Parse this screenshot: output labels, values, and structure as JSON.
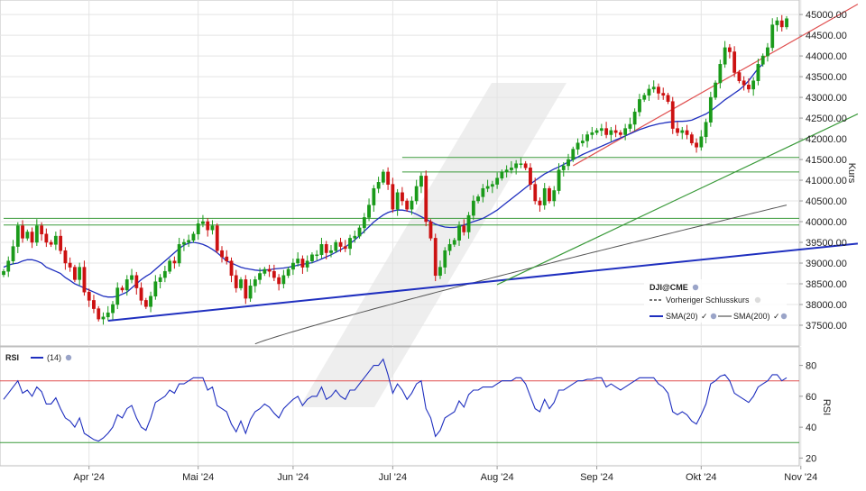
{
  "chart_data": [
    {
      "type": "candlestick",
      "panel": "price",
      "symbol": "DJI@CME",
      "ylabel": "Kurs",
      "ylim": [
        37000,
        45350
      ],
      "yticks": [
        37500,
        38000,
        38500,
        39000,
        39500,
        40000,
        40500,
        41000,
        41500,
        42000,
        42500,
        43000,
        43500,
        44000,
        44500,
        45000
      ],
      "ytick_labels": [
        "37500.00",
        "38000.00",
        "38500.00",
        "39000.00",
        "39500.00",
        "40000.00",
        "40500.00",
        "41000.00",
        "41500.00",
        "42000.00",
        "42500.00",
        "43000.00",
        "43500.00",
        "44000.00",
        "44500.00",
        "45000.00"
      ],
      "x_labels": [
        "Apr '24",
        "Mai '24",
        "Jun '24",
        "Jul '24",
        "Aug '24",
        "Sep '24",
        "Okt '24",
        "Nov '24"
      ],
      "x_label_index": [
        18,
        41,
        61,
        82,
        104,
        125,
        147,
        168
      ],
      "candle_color_up": "#1a9a1a",
      "candle_color_down": "#cc1111",
      "close": [
        38800,
        39050,
        39400,
        39900,
        39600,
        39750,
        39500,
        39900,
        39700,
        39500,
        39450,
        39650,
        39300,
        39000,
        38900,
        38600,
        38900,
        38300,
        38100,
        37900,
        37650,
        37700,
        37800,
        38000,
        38400,
        38350,
        38600,
        38700,
        38400,
        38100,
        37950,
        38200,
        38550,
        38650,
        38800,
        39050,
        39000,
        39450,
        39500,
        39550,
        39700,
        39950,
        40000,
        39800,
        39900,
        39300,
        39150,
        39050,
        38700,
        38400,
        38600,
        38150,
        38450,
        38600,
        38750,
        38850,
        38800,
        38650,
        38500,
        38700,
        38850,
        39000,
        39100,
        38900,
        39050,
        39200,
        39200,
        39450,
        39250,
        39300,
        39500,
        39400,
        39350,
        39600,
        39650,
        39850,
        40100,
        40400,
        40800,
        40950,
        41200,
        40900,
        40300,
        40700,
        40500,
        40300,
        40500,
        40850,
        41100,
        40000,
        39600,
        38700,
        38900,
        39300,
        39450,
        39550,
        39900,
        39750,
        40150,
        40500,
        40600,
        40800,
        40850,
        40900,
        41050,
        41200,
        41250,
        41300,
        41400,
        41400,
        41300,
        40900,
        40500,
        40400,
        40800,
        40500,
        40750,
        41250,
        41350,
        41500,
        41750,
        41900,
        41950,
        42100,
        42150,
        42200,
        42250,
        42100,
        42200,
        42150,
        42100,
        42250,
        42350,
        42650,
        42950,
        43050,
        43200,
        43250,
        43100,
        43050,
        42900,
        42250,
        42150,
        42200,
        42100,
        41900,
        41800,
        42050,
        42400,
        43000,
        43350,
        43800,
        44200,
        44100,
        43600,
        43400,
        43300,
        43200,
        43400,
        43800,
        44000,
        44200,
        44750,
        44850,
        44700,
        44900
      ],
      "sma20_start_index": 0,
      "sma20": [
        38900,
        38950,
        38980,
        39000,
        39050,
        39080,
        39080,
        39050,
        39000,
        38900,
        38850,
        38800,
        38750,
        38650,
        38580,
        38500,
        38450,
        38400,
        38350,
        38300,
        38250,
        38200,
        38180,
        38180,
        38200,
        38250,
        38300,
        38400,
        38500,
        38600,
        38680,
        38750,
        38850,
        38950,
        39050,
        39150,
        39250,
        39350,
        39430,
        39480,
        39500,
        39480,
        39450,
        39400,
        39330,
        39250,
        39150,
        39050,
        39000,
        38950,
        38900,
        38870,
        38850,
        38830,
        38820,
        38830,
        38840,
        38860,
        38870,
        38880,
        38900,
        38920,
        38950,
        38970,
        38990,
        39010,
        39050,
        39100,
        39150,
        39200,
        39260,
        39320,
        39390,
        39470,
        39560,
        39660,
        39770,
        39880,
        39990,
        40080,
        40160,
        40220,
        40260,
        40280,
        40280,
        40260,
        40230,
        40180,
        40120,
        40060,
        40000,
        39940,
        39900,
        39870,
        39860,
        39860,
        39880,
        39920,
        39960,
        40000,
        40040,
        40080,
        40140,
        40210,
        40280,
        40370,
        40460,
        40550,
        40640,
        40730,
        40820,
        40910,
        40990,
        41070,
        41150,
        41210,
        41270,
        41320,
        41380,
        41440,
        41500,
        41560,
        41620,
        41670,
        41720,
        41770,
        41820,
        41870,
        41920,
        41970,
        42020,
        42070,
        42120,
        42170,
        42220,
        42260,
        42300,
        42330,
        42360,
        42380,
        42400,
        42410,
        42420,
        42420,
        42430,
        42450,
        42500,
        42550,
        42600,
        42670,
        42760,
        42850,
        42940,
        43020,
        43100,
        43180,
        43280,
        43400,
        43550,
        43700,
        43800
      ],
      "sma200_start_index": 53,
      "sma200_end_value": 40400,
      "sma200_start_value": 37050,
      "trendlines": [
        {
          "name": "support-blue",
          "color": "#1f2fbf",
          "from": [
            22,
            37610
          ],
          "to": [
            180,
            39470
          ]
        },
        {
          "name": "channel-upper-red",
          "color": "#e05050",
          "from": [
            120,
            41350
          ],
          "to": [
            180,
            45250
          ]
        },
        {
          "name": "channel-lower-green",
          "color": "#3a9a3a",
          "from": [
            104,
            38480
          ],
          "to": [
            180,
            42600
          ]
        }
      ],
      "horizontal_lines": [
        {
          "value": 41550,
          "from_index": 84,
          "color": "#3a9a3a"
        },
        {
          "value": 41200,
          "from_index": 84,
          "color": "#3a9a3a"
        },
        {
          "value": 40080,
          "from_index": 0,
          "color": "#3a9a3a"
        },
        {
          "value": 39920,
          "from_index": 0,
          "color": "#3a9a3a"
        }
      ],
      "legend": {
        "title": "DJI@CME",
        "items": [
          {
            "label": "Vorheriger Schlusskurs",
            "style": "dashed",
            "color": "#222222"
          },
          {
            "label": "SMA(20)",
            "color": "#1f2fbf"
          },
          {
            "label": "SMA(200)",
            "color": "#555555"
          }
        ]
      }
    },
    {
      "type": "line",
      "panel": "rsi",
      "title": "RSI",
      "param": "(14)",
      "ylabel": "RSI",
      "ylim": [
        15,
        92
      ],
      "yticks": [
        20,
        40,
        60,
        80
      ],
      "levels": [
        {
          "value": 70,
          "color": "#e05050"
        },
        {
          "value": 30,
          "color": "#3a9a3a"
        }
      ],
      "series": [
        {
          "values": [
            58,
            62,
            66,
            70,
            62,
            64,
            60,
            66,
            63,
            55,
            55,
            59,
            52,
            46,
            44,
            40,
            46,
            36,
            34,
            32,
            31,
            33,
            36,
            40,
            48,
            46,
            52,
            54,
            46,
            40,
            38,
            46,
            56,
            58,
            60,
            64,
            62,
            68,
            68,
            70,
            72,
            72,
            72,
            64,
            66,
            54,
            52,
            50,
            42,
            37,
            44,
            36,
            45,
            50,
            52,
            55,
            53,
            49,
            46,
            52,
            55,
            58,
            60,
            54,
            58,
            60,
            60,
            66,
            58,
            60,
            64,
            60,
            58,
            64,
            64,
            68,
            72,
            76,
            80,
            80,
            84,
            74,
            62,
            68,
            64,
            58,
            62,
            68,
            70,
            52,
            46,
            34,
            38,
            46,
            48,
            50,
            57,
            53,
            61,
            64,
            64,
            66,
            66,
            66,
            68,
            70,
            70,
            70,
            72,
            72,
            68,
            60,
            52,
            50,
            58,
            52,
            56,
            64,
            64,
            66,
            68,
            70,
            70,
            71,
            71,
            72,
            72,
            66,
            68,
            66,
            64,
            66,
            68,
            70,
            72,
            72,
            72,
            72,
            68,
            66,
            62,
            50,
            48,
            50,
            48,
            44,
            42,
            48,
            55,
            68,
            70,
            73,
            74,
            70,
            62,
            60,
            58,
            56,
            60,
            66,
            68,
            70,
            74,
            74,
            70,
            72
          ]
        }
      ]
    }
  ]
}
